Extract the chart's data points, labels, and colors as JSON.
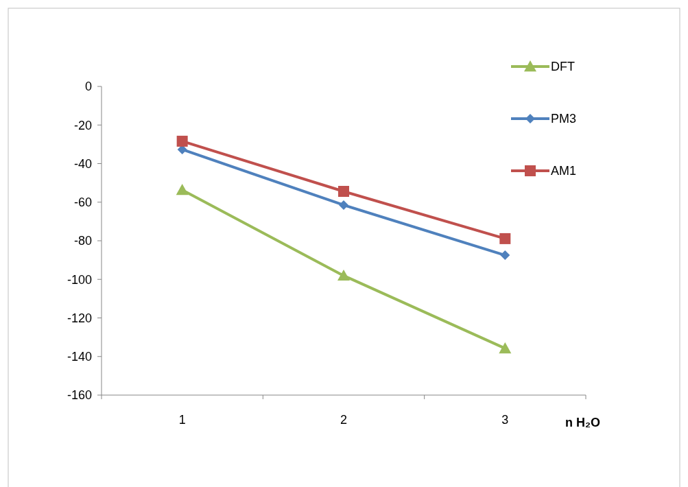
{
  "chart_data": {
    "type": "line",
    "xlabel": "n H₂O",
    "categories": [
      "1",
      "2",
      "3"
    ],
    "ylim": [
      -160,
      0
    ],
    "yticks": [
      -160,
      -140,
      -120,
      -100,
      -80,
      -60,
      -40,
      -20,
      0
    ],
    "grid": false,
    "legend": "top right",
    "series": [
      {
        "name": "DFT",
        "color": "#9bbb59",
        "marker": "triangle",
        "values": [
          -53.7,
          -98.1,
          -135.8
        ]
      },
      {
        "name": "PM3",
        "color": "#4f81bd",
        "marker": "diamond",
        "values": [
          -32.7,
          -61.5,
          -87.5
        ]
      },
      {
        "name": "AM1",
        "color": "#c0504d",
        "marker": "square",
        "values": [
          -28.4,
          -54.4,
          -78.9
        ]
      }
    ]
  }
}
